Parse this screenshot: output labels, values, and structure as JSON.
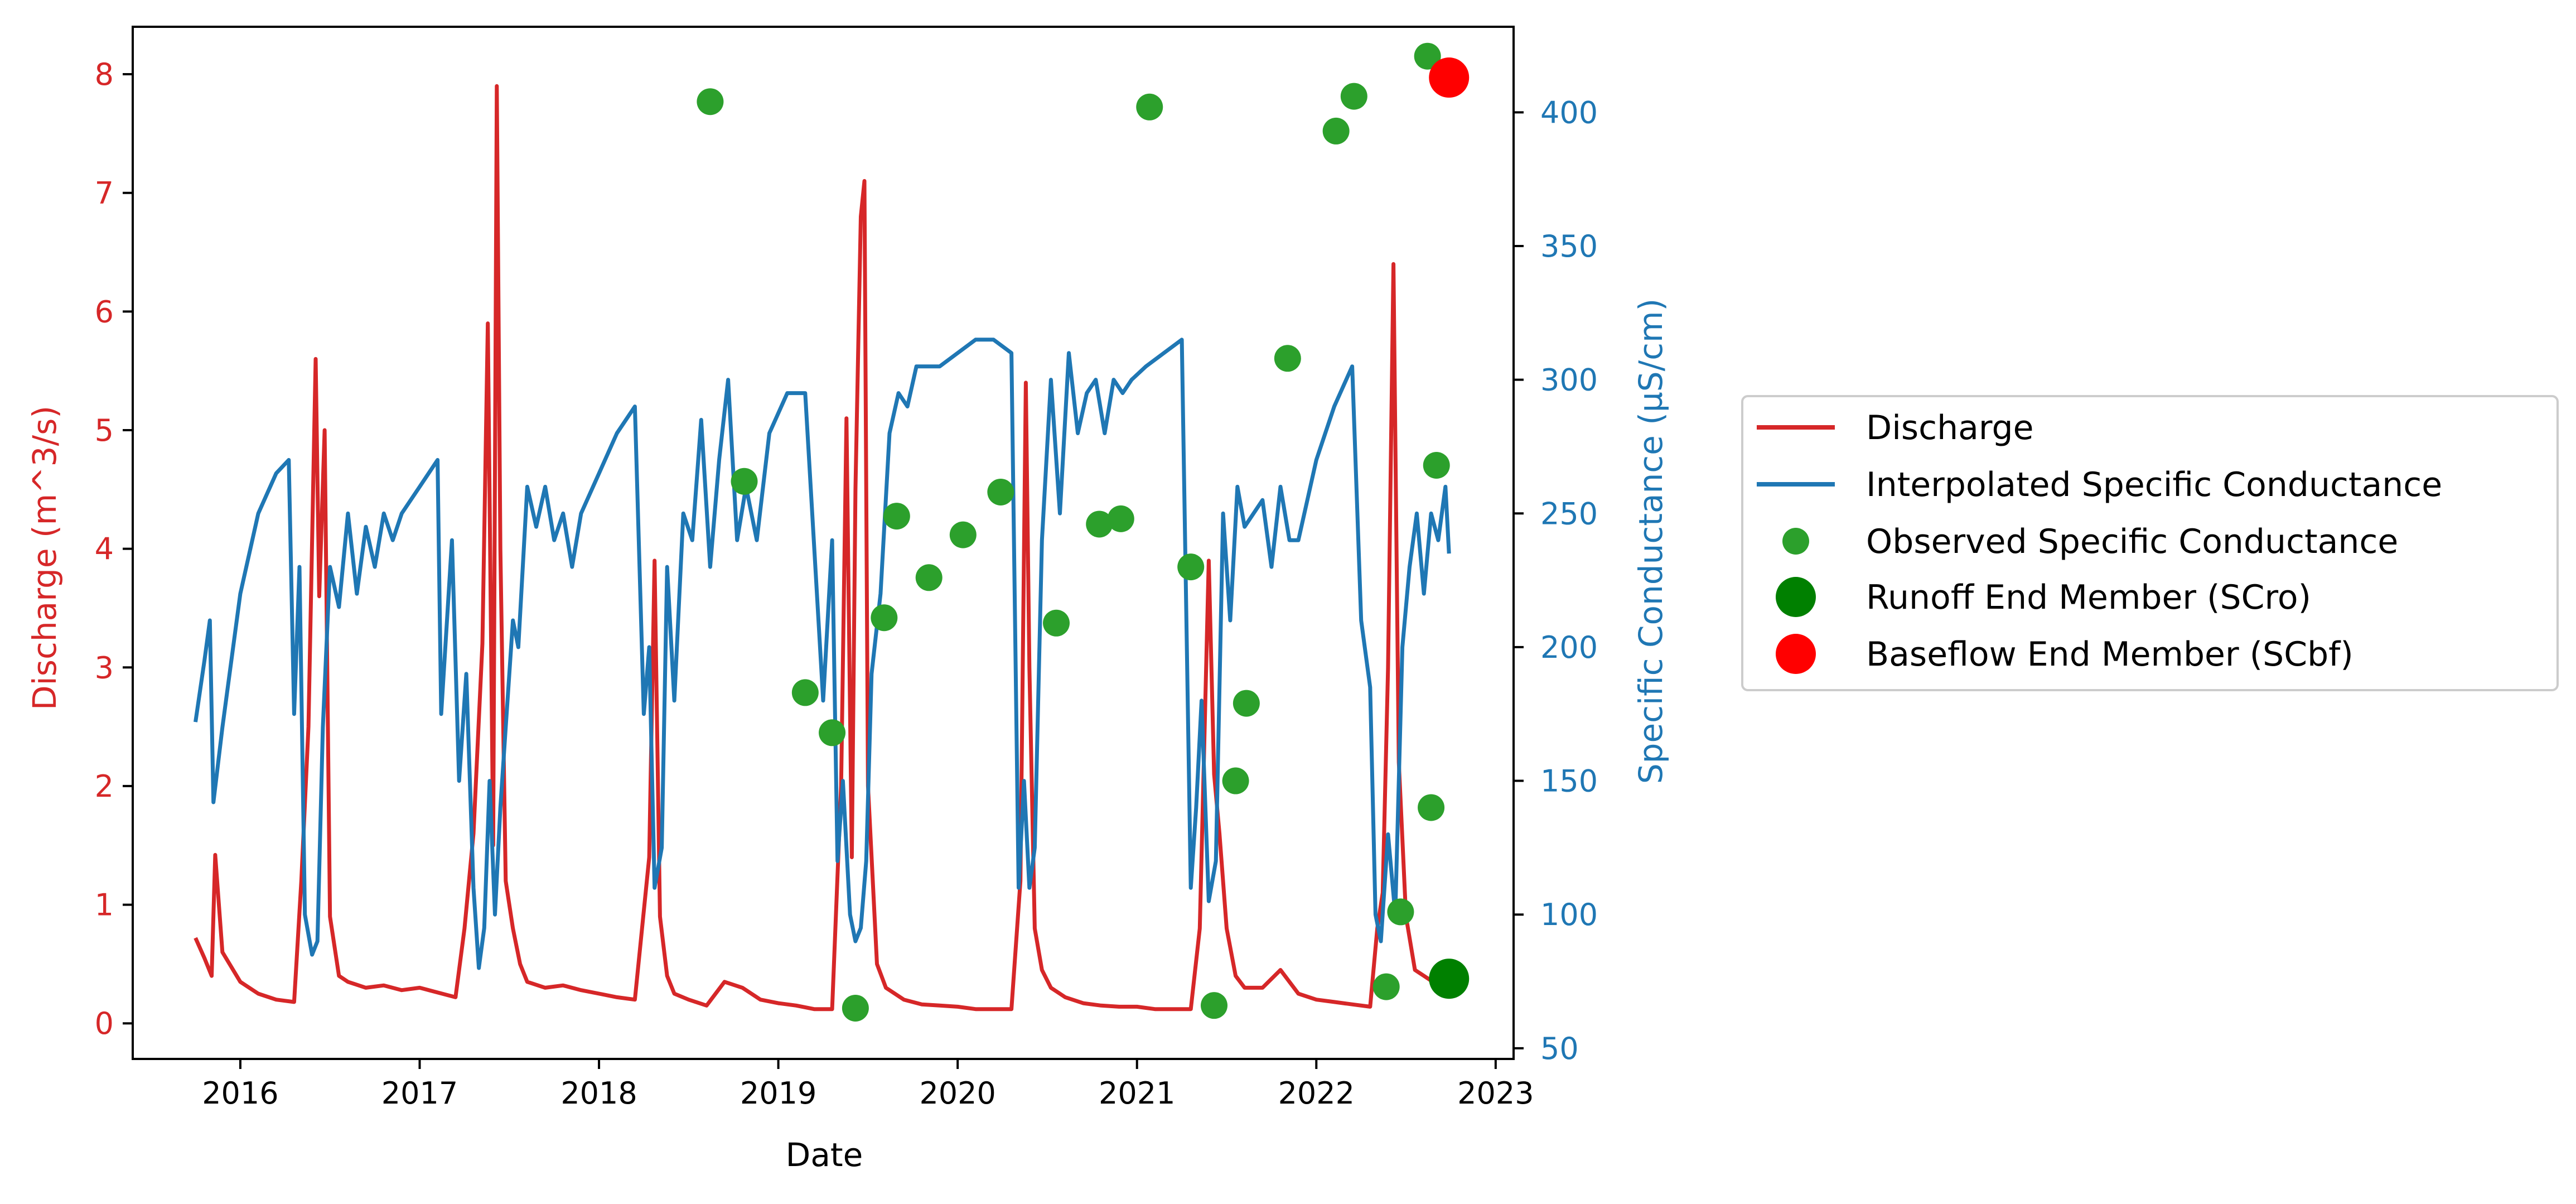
{
  "chart_data": {
    "type": "line",
    "xlabel": "Date",
    "ylabel_left": "Discharge (m^3/s)",
    "ylabel_right": "Specific Conductance (µS/cm)",
    "x_tick_labels": [
      "2016",
      "2017",
      "2018",
      "2019",
      "2020",
      "2021",
      "2022",
      "2023"
    ],
    "x_ticks": [
      2016,
      2017,
      2018,
      2019,
      2020,
      2021,
      2022,
      2023
    ],
    "xlim": [
      2015.4,
      2023.1
    ],
    "ylim_left": [
      -0.3,
      8.4
    ],
    "ylim_right": [
      46,
      432
    ],
    "y_ticks_left": [
      0,
      1,
      2,
      3,
      4,
      5,
      6,
      7,
      8
    ],
    "y_tick_labels_left": [
      "0",
      "1",
      "2",
      "3",
      "4",
      "5",
      "6",
      "7",
      "8"
    ],
    "y_ticks_right": [
      50,
      100,
      150,
      200,
      250,
      300,
      350,
      400
    ],
    "y_tick_labels_right": [
      "50",
      "100",
      "150",
      "200",
      "250",
      "300",
      "350",
      "400"
    ],
    "legend_position": "right, outside plot",
    "colors": {
      "discharge": "#d62728",
      "interpolated": "#1f77b4",
      "observed": "#2ca02c",
      "runoff": "#008000",
      "baseflow": "#ff0000"
    },
    "series": [
      {
        "name": "Discharge",
        "axis": "left",
        "kind": "line",
        "x": [
          2015.75,
          2015.8,
          2015.84,
          2015.86,
          2015.9,
          2016.0,
          2016.1,
          2016.2,
          2016.3,
          2016.34,
          2016.38,
          2016.42,
          2016.44,
          2016.47,
          2016.5,
          2016.55,
          2016.6,
          2016.7,
          2016.8,
          2016.9,
          2017.0,
          2017.1,
          2017.2,
          2017.25,
          2017.3,
          2017.35,
          2017.38,
          2017.41,
          2017.43,
          2017.45,
          2017.48,
          2017.52,
          2017.56,
          2017.6,
          2017.7,
          2017.8,
          2017.9,
          2018.0,
          2018.1,
          2018.2,
          2018.28,
          2018.31,
          2018.34,
          2018.38,
          2018.42,
          2018.5,
          2018.6,
          2018.7,
          2018.8,
          2018.9,
          2019.0,
          2019.1,
          2019.2,
          2019.3,
          2019.35,
          2019.38,
          2019.41,
          2019.43,
          2019.46,
          2019.48,
          2019.5,
          2019.55,
          2019.6,
          2019.7,
          2019.8,
          2019.9,
          2020.0,
          2020.1,
          2020.2,
          2020.3,
          2020.35,
          2020.38,
          2020.4,
          2020.43,
          2020.47,
          2020.52,
          2020.6,
          2020.7,
          2020.8,
          2020.9,
          2021.0,
          2021.1,
          2021.2,
          2021.3,
          2021.35,
          2021.4,
          2021.43,
          2021.46,
          2021.5,
          2021.55,
          2021.6,
          2021.7,
          2021.8,
          2021.9,
          2022.0,
          2022.1,
          2022.2,
          2022.3,
          2022.34,
          2022.37,
          2022.4,
          2022.43,
          2022.46,
          2022.5,
          2022.55,
          2022.6,
          2022.65,
          2022.7,
          2022.74
        ],
        "values": [
          0.72,
          0.55,
          0.4,
          1.42,
          0.6,
          0.35,
          0.25,
          0.2,
          0.18,
          1.2,
          2.5,
          5.6,
          3.6,
          5.0,
          0.9,
          0.4,
          0.35,
          0.3,
          0.32,
          0.28,
          0.3,
          0.26,
          0.22,
          0.8,
          1.6,
          3.2,
          5.9,
          1.5,
          7.9,
          4.0,
          1.2,
          0.8,
          0.5,
          0.35,
          0.3,
          0.32,
          0.28,
          0.25,
          0.22,
          0.2,
          1.4,
          3.9,
          0.9,
          0.4,
          0.25,
          0.2,
          0.15,
          0.35,
          0.3,
          0.2,
          0.17,
          0.15,
          0.12,
          0.12,
          2.0,
          5.1,
          1.4,
          4.5,
          6.8,
          7.1,
          2.0,
          0.5,
          0.3,
          0.2,
          0.16,
          0.15,
          0.14,
          0.12,
          0.12,
          0.12,
          1.2,
          5.4,
          3.0,
          0.8,
          0.45,
          0.3,
          0.22,
          0.17,
          0.15,
          0.14,
          0.14,
          0.12,
          0.12,
          0.12,
          0.8,
          3.9,
          2.1,
          1.6,
          0.8,
          0.4,
          0.3,
          0.3,
          0.45,
          0.25,
          0.2,
          0.18,
          0.16,
          0.14,
          0.8,
          1.1,
          3.0,
          6.4,
          2.2,
          0.9,
          0.45,
          0.4,
          0.35,
          0.3,
          0.22
        ]
      },
      {
        "name": "Interpolated Specific Conductance",
        "axis": "right",
        "kind": "line",
        "x": [
          2015.75,
          2015.8,
          2015.83,
          2015.85,
          2015.9,
          2016.0,
          2016.1,
          2016.2,
          2016.27,
          2016.3,
          2016.33,
          2016.36,
          2016.4,
          2016.43,
          2016.46,
          2016.5,
          2016.55,
          2016.6,
          2016.65,
          2016.7,
          2016.75,
          2016.8,
          2016.85,
          2016.9,
          2017.0,
          2017.1,
          2017.12,
          2017.18,
          2017.22,
          2017.26,
          2017.3,
          2017.33,
          2017.36,
          2017.39,
          2017.42,
          2017.45,
          2017.48,
          2017.52,
          2017.55,
          2017.6,
          2017.65,
          2017.7,
          2017.75,
          2017.8,
          2017.85,
          2017.9,
          2018.0,
          2018.1,
          2018.2,
          2018.25,
          2018.28,
          2018.31,
          2018.35,
          2018.38,
          2018.42,
          2018.47,
          2018.52,
          2018.57,
          2018.62,
          2018.67,
          2018.72,
          2018.77,
          2018.82,
          2018.88,
          2018.95,
          2019.05,
          2019.15,
          2019.25,
          2019.3,
          2019.33,
          2019.36,
          2019.4,
          2019.43,
          2019.46,
          2019.49,
          2019.52,
          2019.57,
          2019.62,
          2019.67,
          2019.72,
          2019.77,
          2019.82,
          2019.9,
          2020.0,
          2020.1,
          2020.2,
          2020.3,
          2020.34,
          2020.37,
          2020.4,
          2020.43,
          2020.47,
          2020.52,
          2020.57,
          2020.62,
          2020.67,
          2020.72,
          2020.77,
          2020.82,
          2020.87,
          2020.92,
          2020.97,
          2021.05,
          2021.15,
          2021.25,
          2021.3,
          2021.33,
          2021.36,
          2021.4,
          2021.44,
          2021.48,
          2021.52,
          2021.56,
          2021.6,
          2021.65,
          2021.7,
          2021.75,
          2021.8,
          2021.85,
          2021.9,
          2022.0,
          2022.1,
          2022.2,
          2022.25,
          2022.3,
          2022.33,
          2022.36,
          2022.4,
          2022.44,
          2022.48,
          2022.52,
          2022.56,
          2022.6,
          2022.64,
          2022.68,
          2022.72,
          2022.74
        ],
        "values": [
          172,
          195,
          210,
          142,
          170,
          220,
          250,
          265,
          270,
          175,
          230,
          100,
          85,
          90,
          170,
          230,
          215,
          250,
          220,
          245,
          230,
          250,
          240,
          250,
          260,
          270,
          175,
          240,
          150,
          190,
          110,
          80,
          95,
          150,
          100,
          140,
          170,
          210,
          200,
          260,
          245,
          260,
          240,
          250,
          230,
          250,
          265,
          280,
          290,
          175,
          200,
          110,
          125,
          230,
          180,
          250,
          240,
          285,
          230,
          270,
          300,
          240,
          260,
          240,
          280,
          295,
          295,
          180,
          240,
          120,
          150,
          100,
          90,
          95,
          120,
          190,
          220,
          280,
          295,
          290,
          305,
          305,
          305,
          310,
          315,
          315,
          310,
          110,
          150,
          110,
          125,
          240,
          300,
          250,
          310,
          280,
          295,
          300,
          280,
          300,
          295,
          300,
          305,
          310,
          315,
          110,
          140,
          180,
          105,
          120,
          250,
          210,
          260,
          245,
          250,
          255,
          230,
          260,
          240,
          240,
          270,
          290,
          305,
          210,
          185,
          100,
          90,
          130,
          100,
          200,
          230,
          250,
          220,
          250,
          240,
          260,
          235
        ]
      },
      {
        "name": "Observed Specific Conductance",
        "axis": "right",
        "kind": "scatter",
        "x": [
          2018.62,
          2018.81,
          2019.15,
          2019.3,
          2019.43,
          2019.59,
          2019.66,
          2019.84,
          2020.03,
          2020.24,
          2020.55,
          2020.79,
          2020.91,
          2021.07,
          2021.3,
          2021.43,
          2021.55,
          2021.61,
          2021.84,
          2022.11,
          2022.21,
          2022.39,
          2022.47,
          2022.62,
          2022.64,
          2022.67
        ],
        "values": [
          404,
          262,
          183,
          168,
          65,
          211,
          249,
          226,
          242,
          258,
          209,
          246,
          248,
          402,
          230,
          66,
          150,
          179,
          308,
          393,
          406,
          73,
          101,
          421,
          140,
          268
        ]
      },
      {
        "name": "Runoff End Member (SCro)",
        "axis": "right",
        "kind": "point",
        "x": [
          2022.74
        ],
        "values": [
          76
        ]
      },
      {
        "name": "Baseflow End Member (SCbf)",
        "axis": "right",
        "kind": "point",
        "x": [
          2022.74
        ],
        "values": [
          413
        ]
      }
    ]
  }
}
